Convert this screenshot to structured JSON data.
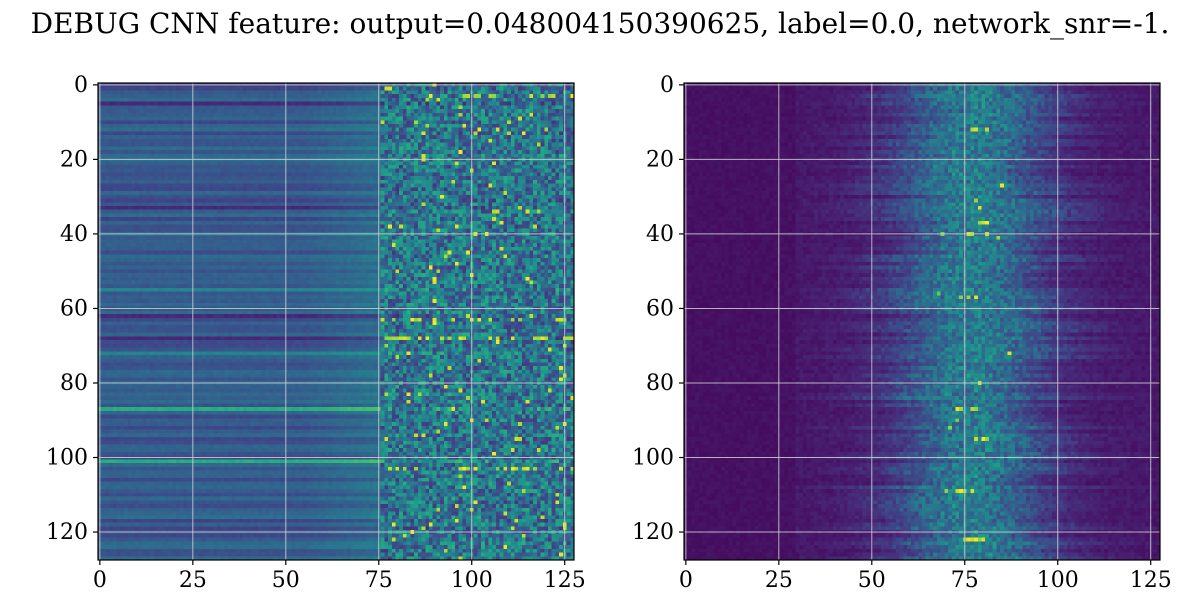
{
  "figure": {
    "title": "DEBUG CNN feature: output=0.048004150390625, label=0.0, network_snr=-1."
  },
  "chart_data": [
    {
      "type": "heatmap",
      "panel": "left",
      "colormap": "viridis",
      "rows": 128,
      "cols": 128,
      "xlim": [
        0,
        127
      ],
      "ylim": [
        127,
        0
      ],
      "xticks": [
        0,
        25,
        50,
        75,
        100,
        125
      ],
      "yticks": [
        0,
        20,
        40,
        60,
        80,
        100,
        120
      ],
      "xtick_labels": [
        "0",
        "25",
        "50",
        "75",
        "100",
        "125"
      ],
      "ytick_labels": [
        "0",
        "20",
        "40",
        "60",
        "80",
        "100",
        "120"
      ],
      "grid": true,
      "description_of_values": {
        "cols_0_to_75": "smooth horizontal bands, mid-to-low intensity (0.2-0.45), bright stripe near rows 87 and 101, dark stripe near rows 68 and 62",
        "cols_76_to_127": "noisy, higher intensity with scattered yellow peaks (up to 1.0) near rows 3, 63, 68, 103"
      }
    },
    {
      "type": "heatmap",
      "panel": "right",
      "colormap": "viridis",
      "rows": 128,
      "cols": 128,
      "xlim": [
        0,
        127
      ],
      "ylim": [
        127,
        0
      ],
      "xticks": [
        0,
        25,
        50,
        75,
        100,
        125
      ],
      "yticks": [
        0,
        20,
        40,
        60,
        80,
        100,
        120
      ],
      "xtick_labels": [
        "0",
        "25",
        "50",
        "75",
        "100",
        "125"
      ],
      "ytick_labels": [
        "0",
        "20",
        "40",
        "60",
        "80",
        "100",
        "120"
      ],
      "grid": true,
      "description_of_values": {
        "background": "mostly dark purple (near 0)",
        "band": "vertical band of elevated values centered near col 76-80, spread cols 45-115, peaks near rows 12, 36-40, 57, 109, 122"
      }
    }
  ]
}
